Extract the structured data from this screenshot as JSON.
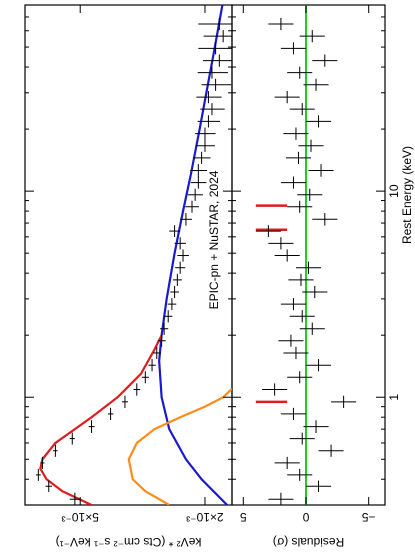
{
  "chart_data": [
    {
      "type": "line",
      "ylabel": "keV² * (Cts cm⁻² s⁻¹ keV⁻¹)",
      "annotation": "EPIC-pn + NuSTAR, 2024",
      "log_x": true,
      "log_y": true,
      "xlim": [
        0.3,
        80
      ],
      "ylim": [
        0.00164,
        0.0075
      ],
      "yticks": [
        {
          "value": 0.005,
          "label": "5×10⁻³"
        },
        {
          "value": 0.002,
          "label": "2×10⁻³"
        }
      ],
      "data": {
        "color": "#000000",
        "x": [
          0.32,
          0.37,
          0.42,
          0.48,
          0.55,
          0.63,
          0.72,
          0.83,
          0.95,
          1.09,
          1.25,
          1.43,
          1.64,
          1.88,
          2.15,
          2.47,
          2.83,
          3.24,
          3.71,
          4.25,
          4.87,
          5.58,
          6.4,
          7.3,
          8.4,
          9.6,
          11,
          12.6,
          14.5,
          16.6,
          19,
          21.8,
          25,
          28.6,
          32.8,
          37.6,
          43,
          49.3,
          56.5,
          64.7
        ],
        "values": [
          0.0052,
          0.0063,
          0.0068,
          0.0066,
          0.006,
          0.0053,
          0.0046,
          0.004,
          0.0036,
          0.0033,
          0.0031,
          0.00295,
          0.00285,
          0.00275,
          0.0027,
          0.00262,
          0.00255,
          0.0025,
          0.00245,
          0.0024,
          0.00235,
          0.0024,
          0.0025,
          0.0023,
          0.0022,
          0.00215,
          0.0021,
          0.0021,
          0.00205,
          0.002,
          0.002,
          0.00195,
          0.0019,
          0.00195,
          0.00185,
          0.0019,
          0.0018,
          0.00185,
          0.00175,
          0.0018
        ],
        "errors": [
          0.0002,
          0.00015,
          0.00012,
          0.0001,
          0.0001,
          0.0001,
          0.0001,
          8e-05,
          8e-05,
          8e-05,
          8e-05,
          8e-05,
          8e-05,
          8e-05,
          8e-05,
          8e-05,
          8e-05,
          8e-05,
          8e-05,
          9e-05,
          0.0001,
          0.0001,
          0.0001,
          0.0001,
          0.00011,
          0.00012,
          0.00012,
          0.00013,
          0.00013,
          0.00014,
          0.00015,
          0.00016,
          0.00017,
          0.00018,
          0.0002,
          0.00021,
          0.00023,
          0.00025,
          0.00027,
          0.0003
        ]
      },
      "models": [
        {
          "color": "#1a1acc",
          "x": [
            0.3,
            0.4,
            0.5,
            0.7,
            1,
            1.5,
            2,
            3,
            5,
            8,
            12,
            20,
            30,
            50,
            80
          ],
          "values": [
            0.0017,
            0.00205,
            0.0023,
            0.0026,
            0.00275,
            0.0028,
            0.00275,
            0.00265,
            0.0025,
            0.00235,
            0.00222,
            0.00208,
            0.00198,
            0.00186,
            0.00176
          ]
        },
        {
          "color": "#ff8c1a",
          "x": [
            0.3,
            0.35,
            0.4,
            0.5,
            0.6,
            0.7,
            0.8,
            0.9,
            1.0,
            1.1
          ],
          "values": [
            0.0026,
            0.0031,
            0.0034,
            0.0035,
            0.0033,
            0.0029,
            0.0024,
            0.002,
            0.00175,
            0.00164
          ]
        },
        {
          "color": "#e01b1b",
          "x": [
            0.3,
            0.35,
            0.4,
            0.45,
            0.5,
            0.6,
            0.7,
            0.8,
            1.0,
            1.3,
            1.7,
            2.0
          ],
          "values": [
            0.0046,
            0.0057,
            0.0064,
            0.0067,
            0.0066,
            0.006,
            0.0052,
            0.0046,
            0.0038,
            0.0032,
            0.0029,
            0.00275
          ]
        }
      ]
    },
    {
      "type": "line",
      "ylabel": "Residuals (σ)",
      "xlabel": "Rest Energy (keV)",
      "log_x": true,
      "log_y": false,
      "xlim": [
        0.3,
        80
      ],
      "xticks": [
        1,
        10
      ],
      "xminorticks": [
        0.3,
        0.4,
        0.5,
        0.6,
        0.7,
        0.8,
        0.9,
        2,
        3,
        4,
        5,
        6,
        7,
        8,
        9,
        20,
        30,
        40,
        50,
        60,
        70,
        80
      ],
      "ylim": [
        -6.3,
        5.9
      ],
      "yticks": [
        5,
        0,
        {
          "value": -5,
          "label": "−5"
        }
      ],
      "zero_line_color": "#22cc22",
      "data": {
        "color": "#000000",
        "x": [
          0.32,
          0.37,
          0.42,
          0.48,
          0.55,
          0.63,
          0.72,
          0.83,
          0.95,
          1.09,
          1.25,
          1.43,
          1.64,
          1.88,
          2.15,
          2.47,
          2.83,
          3.24,
          3.71,
          4.25,
          4.87,
          5.58,
          6.4,
          7.3,
          8.4,
          9.6,
          11,
          12.6,
          14.5,
          16.6,
          19,
          21.8,
          25,
          28.6,
          32.8,
          37.6,
          43,
          49.3,
          56.5,
          64.7
        ],
        "values": [
          2,
          -1,
          0.5,
          1.5,
          -2,
          0.3,
          -0.8,
          1,
          -3,
          2.5,
          0.5,
          -1,
          0.8,
          1.2,
          -0.5,
          0.3,
          1,
          -0.7,
          0.4,
          -0.2,
          1.5,
          2,
          3,
          -1.5,
          0.5,
          -0.3,
          1,
          -1.2,
          0.6,
          -0.4,
          0.8,
          -1,
          0.3,
          1.5,
          -0.8,
          0.5,
          -1.5,
          1,
          -0.5,
          2
        ],
        "errors": [
          1,
          1,
          1,
          1,
          1,
          1,
          1,
          1,
          1,
          1,
          1,
          1,
          1,
          1,
          1,
          1,
          1,
          1,
          1,
          1,
          1,
          1,
          1,
          1,
          1,
          1,
          1,
          1,
          1,
          1,
          1,
          1,
          1,
          1,
          1,
          1,
          1,
          1,
          1,
          1
        ]
      },
      "line_markers": {
        "color": "#e01b1b",
        "x": [
          0.95,
          6.5,
          8.5
        ],
        "span": [
          1.5,
          4
        ]
      }
    }
  ]
}
